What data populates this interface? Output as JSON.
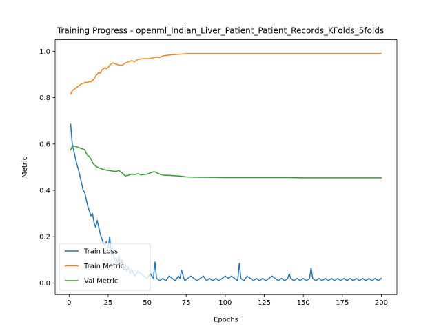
{
  "chart_data": {
    "type": "line",
    "title": "Training Progress - openml_Indian_Liver_Patient_Patient_Records_KFolds_5folds",
    "xlabel": "Epochs",
    "ylabel": "Metric",
    "xlim": [
      -8.95,
      209.95
    ],
    "ylim": [
      -0.05,
      1.05
    ],
    "xticks": [
      0,
      25,
      50,
      75,
      100,
      125,
      150,
      175,
      200
    ],
    "yticks": [
      0.0,
      0.2,
      0.4,
      0.6,
      0.8,
      1.0
    ],
    "xtick_labels": [
      "0",
      "25",
      "50",
      "75",
      "100",
      "125",
      "150",
      "175",
      "200"
    ],
    "ytick_labels": [
      "0.0",
      "0.2",
      "0.4",
      "0.6",
      "0.8",
      "1.0"
    ],
    "grid": false,
    "legend": "lower-left",
    "series": [
      {
        "name": "Train Loss",
        "color": "#1f77b4",
        "x": [
          1,
          2,
          3,
          4,
          5,
          6,
          7,
          8,
          9,
          10,
          11,
          12,
          13,
          14,
          15,
          16,
          17,
          18,
          19,
          20,
          21,
          22,
          23,
          24,
          25,
          26,
          27,
          28,
          29,
          30,
          31,
          32,
          33,
          34,
          35,
          36,
          37,
          38,
          39,
          40,
          42,
          44,
          46,
          48,
          50,
          52,
          54,
          55,
          56,
          58,
          60,
          62,
          64,
          66,
          68,
          70,
          71,
          72,
          74,
          76,
          78,
          80,
          82,
          84,
          86,
          88,
          90,
          92,
          94,
          96,
          98,
          100,
          102,
          104,
          106,
          108,
          109,
          110,
          112,
          114,
          116,
          118,
          120,
          122,
          124,
          126,
          128,
          130,
          132,
          134,
          136,
          138,
          140,
          141,
          142,
          144,
          146,
          148,
          150,
          152,
          154,
          155,
          156,
          158,
          160,
          162,
          164,
          166,
          168,
          170,
          172,
          174,
          176,
          178,
          180,
          182,
          184,
          186,
          188,
          190,
          192,
          194,
          196,
          198,
          200
        ],
        "y": [
          0.685,
          0.6,
          0.57,
          0.54,
          0.51,
          0.49,
          0.46,
          0.43,
          0.4,
          0.39,
          0.36,
          0.33,
          0.31,
          0.29,
          0.3,
          0.26,
          0.24,
          0.27,
          0.24,
          0.21,
          0.19,
          0.17,
          0.16,
          0.18,
          0.15,
          0.2,
          0.12,
          0.14,
          0.1,
          0.11,
          0.09,
          0.12,
          0.07,
          0.1,
          0.06,
          0.08,
          0.05,
          0.07,
          0.04,
          0.06,
          0.03,
          0.05,
          0.04,
          0.03,
          0.02,
          0.04,
          0.02,
          0.09,
          0.02,
          0.01,
          0.02,
          0.01,
          0.03,
          0.02,
          0.01,
          0.03,
          0.02,
          0.055,
          0.01,
          0.02,
          0.03,
          0.02,
          0.01,
          0.02,
          0.03,
          0.01,
          0.02,
          0.01,
          0.02,
          0.01,
          0.02,
          0.03,
          0.02,
          0.03,
          0.02,
          0.01,
          0.085,
          0.02,
          0.01,
          0.03,
          0.02,
          0.01,
          0.02,
          0.01,
          0.02,
          0.01,
          0.02,
          0.03,
          0.02,
          0.01,
          0.02,
          0.01,
          0.02,
          0.04,
          0.02,
          0.01,
          0.02,
          0.01,
          0.02,
          0.01,
          0.02,
          0.065,
          0.02,
          0.01,
          0.02,
          0.01,
          0.02,
          0.01,
          0.02,
          0.01,
          0.02,
          0.01,
          0.02,
          0.01,
          0.02,
          0.01,
          0.02,
          0.01,
          0.02,
          0.01,
          0.02,
          0.01,
          0.02,
          0.01,
          0.02
        ]
      },
      {
        "name": "Train Metric",
        "color": "#ff7f0e",
        "x": [
          1,
          2,
          3,
          4,
          5,
          6,
          7,
          8,
          9,
          10,
          11,
          12,
          13,
          14,
          15,
          16,
          17,
          18,
          19,
          20,
          21,
          22,
          23,
          24,
          25,
          26,
          27,
          28,
          29,
          30,
          32,
          34,
          36,
          38,
          40,
          42,
          44,
          46,
          48,
          50,
          52,
          54,
          56,
          58,
          60,
          62,
          64,
          66,
          68,
          70,
          72,
          74,
          76,
          80,
          90,
          100,
          120,
          140,
          160,
          180,
          200
        ],
        "y": [
          0.815,
          0.83,
          0.835,
          0.84,
          0.845,
          0.85,
          0.855,
          0.86,
          0.862,
          0.865,
          0.866,
          0.866,
          0.87,
          0.868,
          0.875,
          0.88,
          0.895,
          0.9,
          0.91,
          0.905,
          0.92,
          0.925,
          0.93,
          0.925,
          0.93,
          0.94,
          0.945,
          0.95,
          0.948,
          0.945,
          0.94,
          0.94,
          0.95,
          0.955,
          0.96,
          0.955,
          0.965,
          0.967,
          0.968,
          0.968,
          0.969,
          0.972,
          0.975,
          0.973,
          0.98,
          0.982,
          0.984,
          0.985,
          0.986,
          0.987,
          0.988,
          0.989,
          0.99,
          0.99,
          0.99,
          0.99,
          0.99,
          0.99,
          0.99,
          0.99,
          0.99
        ]
      },
      {
        "name": "Val Metric",
        "color": "#2ca02c",
        "x": [
          1,
          2,
          3,
          4,
          5,
          6,
          7,
          8,
          9,
          10,
          11,
          12,
          13,
          14,
          15,
          16,
          17,
          18,
          19,
          20,
          22,
          24,
          26,
          28,
          30,
          32,
          34,
          36,
          38,
          40,
          42,
          44,
          46,
          48,
          50,
          52,
          54,
          55,
          56,
          58,
          60,
          65,
          70,
          75,
          80,
          90,
          100,
          110,
          120,
          130,
          140,
          150,
          160,
          170,
          180,
          190,
          200
        ],
        "y": [
          0.575,
          0.59,
          0.592,
          0.59,
          0.588,
          0.585,
          0.583,
          0.58,
          0.578,
          0.575,
          0.56,
          0.55,
          0.545,
          0.535,
          0.52,
          0.51,
          0.505,
          0.5,
          0.498,
          0.495,
          0.49,
          0.487,
          0.485,
          0.483,
          0.482,
          0.485,
          0.475,
          0.462,
          0.465,
          0.47,
          0.468,
          0.472,
          0.467,
          0.468,
          0.47,
          0.475,
          0.48,
          0.48,
          0.476,
          0.47,
          0.466,
          0.464,
          0.462,
          0.458,
          0.457,
          0.456,
          0.455,
          0.455,
          0.455,
          0.455,
          0.455,
          0.454,
          0.454,
          0.454,
          0.454,
          0.454,
          0.454
        ]
      }
    ]
  }
}
